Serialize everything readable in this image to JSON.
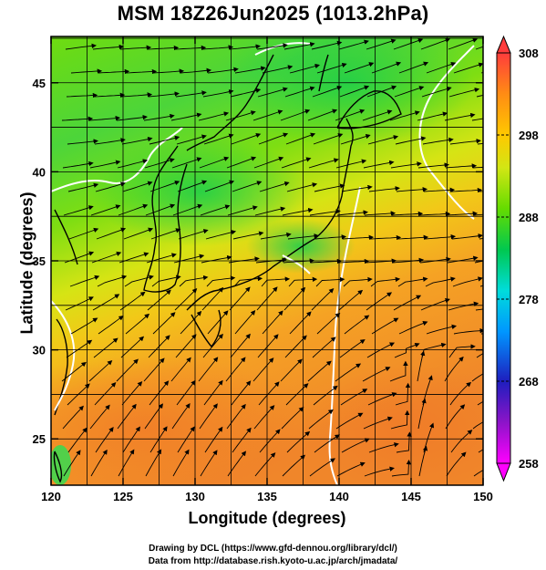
{
  "title": "MSM 18Z26Jun2025 (1013.2hPa)",
  "map": {
    "xlabel": "Longitude (degrees)",
    "ylabel": "Latitude  (degrees)",
    "lon_ticks": [
      "120",
      "125",
      "130",
      "135",
      "140",
      "145",
      "150"
    ],
    "lat_ticks": [
      "25",
      "30",
      "35",
      "40",
      "45"
    ],
    "lon_range": [
      120,
      150
    ],
    "lat_range": [
      22.4,
      47.6
    ]
  },
  "colorbar": {
    "labels": [
      "308",
      "298",
      "288",
      "278",
      "268",
      "258"
    ],
    "range": [
      258,
      308
    ],
    "colors": [
      "#ff00ff",
      "#1e1ebe",
      "#0096ff",
      "#00dcdc",
      "#00c850",
      "#64dc00",
      "#d2e614",
      "#ffc800",
      "#ff9600",
      "#ff6432",
      "#ff3c3c"
    ]
  },
  "credits": {
    "line1": "Drawing by DCL (https://www.gfd-dennou.org/library/dcl/)",
    "line2": "Data from http://database.rish.kyoto-u.ac.jp/arch/jmadata/"
  }
}
